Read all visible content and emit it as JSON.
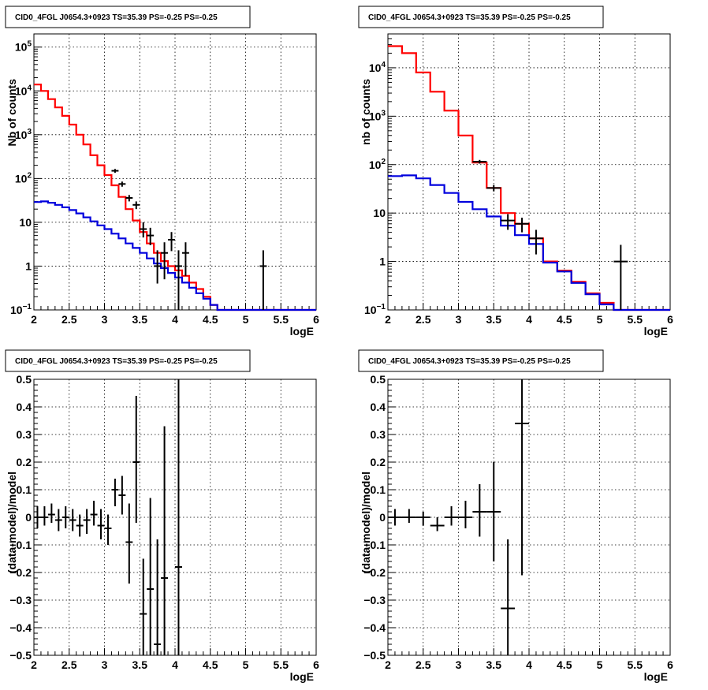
{
  "colors": {
    "total_model": "#ff0000",
    "background_model": "#0000dd",
    "data": "#000000"
  },
  "chart_data": [
    {
      "id": "top-left",
      "type": "line",
      "title": "CID0_4FGL J0654.3+0923 TS=35.39 PS=-0.25 PS=-0.25",
      "xlabel": "logE",
      "ylabel": "Nb of counts",
      "yscale": "log",
      "xlim": [
        2,
        6
      ],
      "ylim": [
        0.1,
        200000
      ],
      "grid": true,
      "x_ticks": [
        "2",
        "2.5",
        "3",
        "3.5",
        "4",
        "4.5",
        "5",
        "5.5",
        "6"
      ],
      "y_ticks": [
        {
          "v": 0.1,
          "label": "10^-1"
        },
        {
          "v": 1,
          "label": "1"
        },
        {
          "v": 10,
          "label": "10"
        },
        {
          "v": 100,
          "label": "10^2"
        },
        {
          "v": 1000,
          "label": "10^3"
        },
        {
          "v": 10000,
          "label": "10^4"
        },
        {
          "v": 100000,
          "label": "10^5"
        }
      ],
      "bin_edges": [
        2.0,
        2.1,
        2.2,
        2.3,
        2.4,
        2.5,
        2.6,
        2.7,
        2.8,
        2.9,
        3.0,
        3.1,
        3.2,
        3.3,
        3.4,
        3.5,
        3.6,
        3.7,
        3.8,
        3.9,
        4.0,
        4.1,
        4.2,
        4.3,
        4.4,
        4.5,
        4.6,
        4.7,
        4.8,
        4.9,
        5.0,
        5.1,
        5.2,
        5.3,
        5.4,
        5.5,
        5.6,
        5.7,
        5.8,
        5.9,
        6.0
      ],
      "series": [
        {
          "name": "",
          "color_key": "total_model",
          "kind": "step",
          "values": [
            14000,
            10000,
            6500,
            4200,
            2700,
            1700,
            1000,
            600,
            340,
            200,
            120,
            70,
            38,
            20,
            11,
            6,
            3.3,
            2.0,
            1.3,
            1.0,
            0.8,
            0.6,
            0.42,
            0.3,
            0.2,
            0.13,
            0.09,
            0.09,
            0.09,
            0.09,
            0.09,
            0.09,
            0.09,
            0.09,
            0.09,
            0.09,
            0.09,
            0.09,
            0.09,
            0.09
          ]
        },
        {
          "name": "",
          "color_key": "background_model",
          "kind": "step",
          "values": [
            29,
            30,
            28,
            25,
            22,
            19,
            16,
            13,
            10.5,
            8.5,
            7,
            5.5,
            4.3,
            3.3,
            2.6,
            2.0,
            1.5,
            1.15,
            0.9,
            0.7,
            0.55,
            0.42,
            0.32,
            0.24,
            0.18,
            0.13,
            0.09,
            0.09,
            0.09,
            0.09,
            0.09,
            0.09,
            0.09,
            0.09,
            0.09,
            0.09,
            0.09,
            0.09,
            0.09,
            0.09
          ]
        },
        {
          "name": "",
          "color_key": "data",
          "kind": "points",
          "points": [
            {
              "x": 3.15,
              "y": 150,
              "xerr": 0.05,
              "lo": 135,
              "hi": 165
            },
            {
              "x": 3.25,
              "y": 75,
              "xerr": 0.05,
              "lo": 65,
              "hi": 85
            },
            {
              "x": 3.35,
              "y": 36,
              "xerr": 0.05,
              "lo": 30,
              "hi": 42
            },
            {
              "x": 3.45,
              "y": 25,
              "xerr": 0.05,
              "lo": 20,
              "hi": 30
            },
            {
              "x": 3.55,
              "y": 7,
              "xerr": 0.05,
              "lo": 4.5,
              "hi": 10
            },
            {
              "x": 3.65,
              "y": 5,
              "xerr": 0.05,
              "lo": 3,
              "hi": 7.5
            },
            {
              "x": 3.75,
              "y": 1,
              "xerr": 0.05,
              "lo": 0.4,
              "hi": 2.3
            },
            {
              "x": 3.85,
              "y": 2,
              "xerr": 0.05,
              "lo": 0.5,
              "hi": 3.5
            },
            {
              "x": 3.95,
              "y": 4,
              "xerr": 0.05,
              "lo": 2.2,
              "hi": 6
            },
            {
              "x": 4.05,
              "y": 1,
              "xerr": 0.05,
              "lo": 0.1,
              "hi": 2.3
            },
            {
              "x": 4.15,
              "y": 2,
              "xerr": 0.05,
              "lo": 0.6,
              "hi": 3.5
            },
            {
              "x": 5.25,
              "y": 1,
              "xerr": 0.05,
              "lo": 0.1,
              "hi": 2.3
            }
          ]
        }
      ]
    },
    {
      "id": "top-right",
      "type": "line",
      "title": "CID0_4FGL J0654.3+0923 TS=35.39 PS=-0.25 PS=-0.25",
      "xlabel": "logE",
      "ylabel": "nb of counts",
      "yscale": "log",
      "xlim": [
        2,
        6
      ],
      "ylim": [
        0.1,
        50000
      ],
      "grid": true,
      "x_ticks": [
        "2",
        "2.5",
        "3",
        "3.5",
        "4",
        "4.5",
        "5",
        "5.5",
        "6"
      ],
      "y_ticks": [
        {
          "v": 0.1,
          "label": "10^-1"
        },
        {
          "v": 1,
          "label": "1"
        },
        {
          "v": 10,
          "label": "10"
        },
        {
          "v": 100,
          "label": "10^2"
        },
        {
          "v": 1000,
          "label": "10^3"
        },
        {
          "v": 10000,
          "label": "10^4"
        }
      ],
      "bin_edges": [
        2.0,
        2.2,
        2.4,
        2.6,
        2.8,
        3.0,
        3.2,
        3.4,
        3.6,
        3.8,
        4.0,
        4.2,
        4.4,
        4.6,
        4.8,
        5.0,
        5.2,
        5.4,
        5.6,
        5.8,
        6.0
      ],
      "series": [
        {
          "name": "",
          "color_key": "total_model",
          "kind": "step",
          "values": [
            28000,
            20000,
            8000,
            3200,
            1300,
            400,
            110,
            33,
            10,
            6,
            3,
            1.0,
            0.65,
            0.38,
            0.22,
            0.14,
            0.09,
            0.09,
            0.09,
            0.09
          ]
        },
        {
          "name": "",
          "color_key": "background_model",
          "kind": "step",
          "values": [
            58,
            60,
            52,
            38,
            26,
            17,
            12,
            8.5,
            5.5,
            3.5,
            2.3,
            0.95,
            0.62,
            0.36,
            0.21,
            0.13,
            0.09,
            0.09,
            0.09,
            0.09
          ]
        },
        {
          "name": "",
          "color_key": "data",
          "kind": "points",
          "points": [
            {
              "x": 3.3,
              "y": 115,
              "xerr": 0.1,
              "lo": 105,
              "hi": 125
            },
            {
              "x": 3.5,
              "y": 33,
              "xerr": 0.1,
              "lo": 28,
              "hi": 38
            },
            {
              "x": 3.7,
              "y": 7,
              "xerr": 0.1,
              "lo": 4.5,
              "hi": 9.5
            },
            {
              "x": 3.9,
              "y": 6,
              "xerr": 0.1,
              "lo": 4,
              "hi": 8
            },
            {
              "x": 4.1,
              "y": 3,
              "xerr": 0.1,
              "lo": 1.4,
              "hi": 4.5
            },
            {
              "x": 5.3,
              "y": 1,
              "xerr": 0.1,
              "lo": 0.1,
              "hi": 2.2
            }
          ]
        }
      ]
    },
    {
      "id": "bottom-left",
      "type": "scatter",
      "title": "CID0_4FGL J0654.3+0923 TS=35.39 PS=-0.25 PS=-0.25",
      "xlabel": "logE",
      "ylabel": "(data-model)/model",
      "yscale": "linear",
      "xlim": [
        2,
        6
      ],
      "ylim": [
        -0.5,
        0.5
      ],
      "grid": true,
      "x_ticks": [
        "2",
        "2.5",
        "3",
        "3.5",
        "4",
        "4.5",
        "5",
        "5.5",
        "6"
      ],
      "y_ticks": [
        {
          "v": -0.5,
          "label": "-0.5"
        },
        {
          "v": -0.4,
          "label": "-0.4"
        },
        {
          "v": -0.3,
          "label": "-0.3"
        },
        {
          "v": -0.2,
          "label": "-0.2"
        },
        {
          "v": -0.1,
          "label": "-0.1"
        },
        {
          "v": 0,
          "label": "0"
        },
        {
          "v": 0.1,
          "label": "0.1"
        },
        {
          "v": 0.2,
          "label": "0.2"
        },
        {
          "v": 0.3,
          "label": "0.3"
        },
        {
          "v": 0.4,
          "label": "0.4"
        },
        {
          "v": 0.5,
          "label": "0.5"
        }
      ],
      "series": [
        {
          "name": "",
          "color_key": "data",
          "kind": "points",
          "points": [
            {
              "x": 2.05,
              "y": 0.0,
              "xerr": 0.05,
              "lo": -0.04,
              "hi": 0.04
            },
            {
              "x": 2.15,
              "y": 0.0,
              "xerr": 0.05,
              "lo": -0.03,
              "hi": 0.04
            },
            {
              "x": 2.25,
              "y": 0.01,
              "xerr": 0.05,
              "lo": -0.02,
              "hi": 0.05
            },
            {
              "x": 2.35,
              "y": -0.01,
              "xerr": 0.05,
              "lo": -0.05,
              "hi": 0.03
            },
            {
              "x": 2.45,
              "y": 0.0,
              "xerr": 0.05,
              "lo": -0.04,
              "hi": 0.04
            },
            {
              "x": 2.55,
              "y": -0.01,
              "xerr": 0.05,
              "lo": -0.05,
              "hi": 0.03
            },
            {
              "x": 2.65,
              "y": -0.03,
              "xerr": 0.05,
              "lo": -0.07,
              "hi": 0.01
            },
            {
              "x": 2.75,
              "y": -0.01,
              "xerr": 0.05,
              "lo": -0.06,
              "hi": 0.03
            },
            {
              "x": 2.85,
              "y": 0.01,
              "xerr": 0.05,
              "lo": -0.03,
              "hi": 0.06
            },
            {
              "x": 2.95,
              "y": -0.03,
              "xerr": 0.05,
              "lo": -0.08,
              "hi": 0.03
            },
            {
              "x": 3.05,
              "y": -0.04,
              "xerr": 0.05,
              "lo": -0.1,
              "hi": 0.01
            },
            {
              "x": 3.15,
              "y": 0.1,
              "xerr": 0.05,
              "lo": 0.04,
              "hi": 0.14
            },
            {
              "x": 3.25,
              "y": 0.08,
              "xerr": 0.05,
              "lo": 0.01,
              "hi": 0.15
            },
            {
              "x": 3.35,
              "y": -0.09,
              "xerr": 0.05,
              "lo": -0.24,
              "hi": 0.05
            },
            {
              "x": 3.45,
              "y": 0.2,
              "xerr": 0.05,
              "lo": -0.02,
              "hi": 0.44
            },
            {
              "x": 3.55,
              "y": -0.35,
              "xerr": 0.05,
              "lo": -0.5,
              "hi": -0.15
            },
            {
              "x": 3.65,
              "y": -0.26,
              "xerr": 0.05,
              "lo": -0.5,
              "hi": 0.07
            },
            {
              "x": 3.75,
              "y": -0.46,
              "xerr": 0.05,
              "lo": -0.5,
              "hi": -0.08
            },
            {
              "x": 3.85,
              "y": -0.22,
              "xerr": 0.05,
              "lo": -0.5,
              "hi": 0.33
            },
            {
              "x": 4.05,
              "y": -0.18,
              "xerr": 0.05,
              "lo": -0.5,
              "hi": 0.5
            }
          ]
        }
      ]
    },
    {
      "id": "bottom-right",
      "type": "scatter",
      "title": "CID0_4FGL J0654.3+0923 TS=35.39 PS=-0.25 PS=-0.25",
      "xlabel": "logE",
      "ylabel": "(data-model)/model",
      "yscale": "linear",
      "xlim": [
        2,
        6
      ],
      "ylim": [
        -0.5,
        0.5
      ],
      "grid": true,
      "x_ticks": [
        "2",
        "2.5",
        "3",
        "3.5",
        "4",
        "4.5",
        "5",
        "5.5",
        "6"
      ],
      "y_ticks": [
        {
          "v": -0.5,
          "label": "-0.5"
        },
        {
          "v": -0.4,
          "label": "-0.4"
        },
        {
          "v": -0.3,
          "label": "-0.3"
        },
        {
          "v": -0.2,
          "label": "-0.2"
        },
        {
          "v": -0.1,
          "label": "-0.1"
        },
        {
          "v": 0,
          "label": "0"
        },
        {
          "v": 0.1,
          "label": "0.1"
        },
        {
          "v": 0.2,
          "label": "0.2"
        },
        {
          "v": 0.3,
          "label": "0.3"
        },
        {
          "v": 0.4,
          "label": "0.4"
        },
        {
          "v": 0.5,
          "label": "0.5"
        }
      ],
      "series": [
        {
          "name": "",
          "color_key": "data",
          "kind": "points",
          "points": [
            {
              "x": 2.1,
              "y": 0.0,
              "xerr": 0.1,
              "lo": -0.03,
              "hi": 0.03
            },
            {
              "x": 2.3,
              "y": 0.0,
              "xerr": 0.1,
              "lo": -0.02,
              "hi": 0.03
            },
            {
              "x": 2.5,
              "y": 0.0,
              "xerr": 0.1,
              "lo": -0.03,
              "hi": 0.02
            },
            {
              "x": 2.7,
              "y": -0.03,
              "xerr": 0.1,
              "lo": -0.05,
              "hi": 0.0
            },
            {
              "x": 2.9,
              "y": 0.0,
              "xerr": 0.1,
              "lo": -0.03,
              "hi": 0.04
            },
            {
              "x": 3.1,
              "y": 0.0,
              "xerr": 0.1,
              "lo": -0.04,
              "hi": 0.06
            },
            {
              "x": 3.3,
              "y": 0.02,
              "xerr": 0.1,
              "lo": -0.07,
              "hi": 0.12
            },
            {
              "x": 3.5,
              "y": 0.02,
              "xerr": 0.1,
              "lo": -0.16,
              "hi": 0.2
            },
            {
              "x": 3.7,
              "y": -0.33,
              "xerr": 0.1,
              "lo": -0.5,
              "hi": -0.08
            },
            {
              "x": 3.9,
              "y": 0.34,
              "xerr": 0.1,
              "lo": -0.21,
              "hi": 0.5
            }
          ]
        }
      ]
    }
  ]
}
